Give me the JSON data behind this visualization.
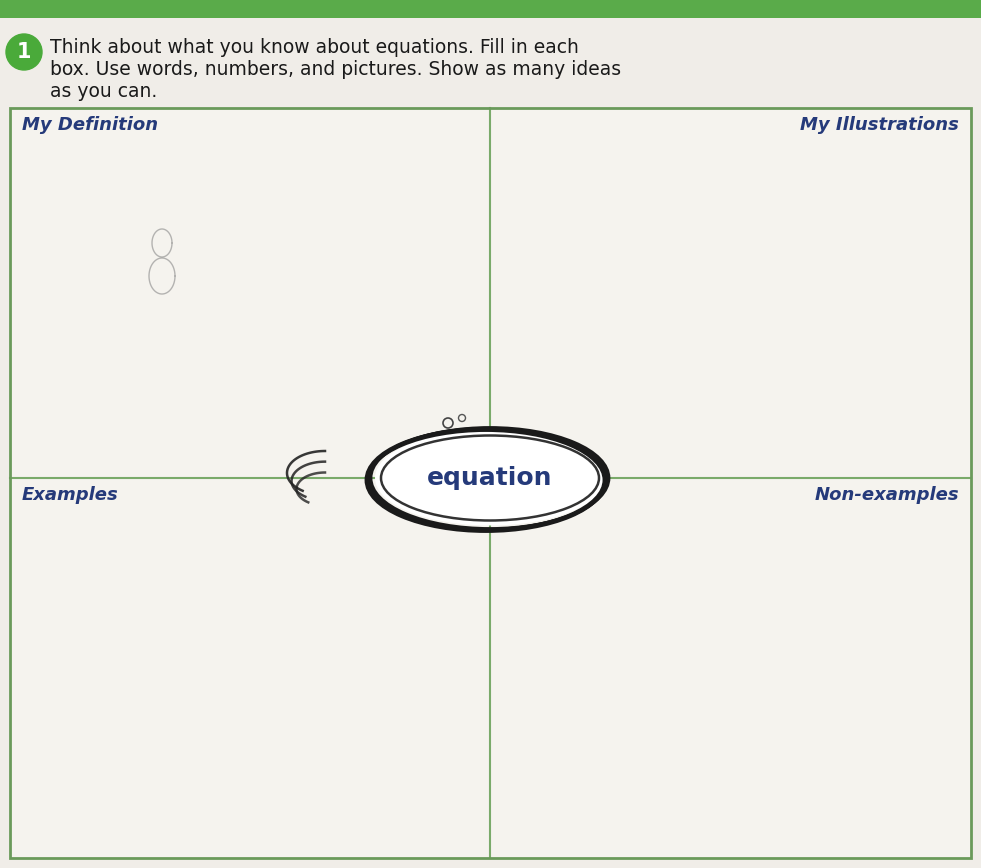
{
  "bg_color": "#f0ede8",
  "box_bg_color": "#f5f3ee",
  "header_bar_color": "#5aab4a",
  "border_color": "#6a9a5a",
  "grid_color": "#7aaa6a",
  "title_color": "#1a1a1a",
  "circle_bg": "#4aaa3a",
  "circle_text_color": "#ffffff",
  "circle_number": "1",
  "title_line1": "Think about what you know about equations. Fill in each",
  "title_line2": "box. Use words, numbers, and pictures. Show as many ideas",
  "title_line3": "as you can.",
  "label_my_definition": "My Definition",
  "label_my_illustrations": "My Illustrations",
  "label_examples": "Examples",
  "label_non_examples": "Non-examples",
  "label_color": "#253a7a",
  "center_word": "equation",
  "center_word_color": "#253a7a",
  "ellipse_color": "#1a1a1a",
  "fig_width": 9.81,
  "fig_height": 8.68,
  "dpi": 100
}
